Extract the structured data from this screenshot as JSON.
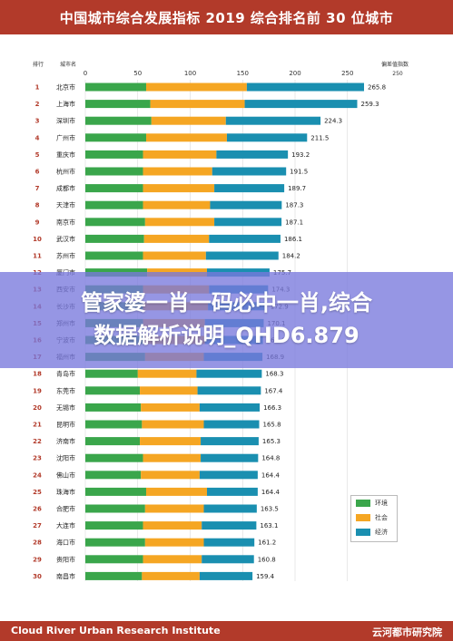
{
  "header": {
    "title": "中国城市综合发展指标 2019 综合排名前 30 位城市"
  },
  "footer": {
    "left": "Cloud River Urban Research Institute",
    "right": "云河都市研究院"
  },
  "overlay": {
    "line1": "管家婆一肖一码必中一肖,综合",
    "line2": "数据解析说明_QHD6.879"
  },
  "colors": {
    "环境": "#3aa64b",
    "社会": "#f5a623",
    "经济": "#1a8fb0",
    "brand": "#b23a2a"
  },
  "chart_data": {
    "type": "bar",
    "orientation": "horizontal",
    "stacked": true,
    "rank_header": "排行",
    "city_header": "城市名",
    "value_header": "偏差值指数",
    "xlim": [
      0,
      250
    ],
    "xticks": [
      0,
      50,
      100,
      150,
      200,
      250
    ],
    "grid": true,
    "legend_position": "bottom-right",
    "ranks": [
      1,
      2,
      3,
      4,
      5,
      6,
      7,
      8,
      9,
      10,
      11,
      12,
      13,
      14,
      15,
      16,
      17,
      18,
      19,
      20,
      21,
      22,
      23,
      24,
      25,
      26,
      27,
      28,
      29,
      30
    ],
    "categories": [
      "北京市",
      "上海市",
      "深圳市",
      "广州市",
      "重庆市",
      "杭州市",
      "成都市",
      "天津市",
      "南京市",
      "武汉市",
      "苏州市",
      "厦门市",
      "西安市",
      "长沙市",
      "郑州市",
      "宁波市",
      "福州市",
      "青岛市",
      "东莞市",
      "无锡市",
      "昆明市",
      "济南市",
      "沈阳市",
      "佛山市",
      "珠海市",
      "合肥市",
      "大连市",
      "海口市",
      "贵阳市",
      "南昌市"
    ],
    "totals": [
      265.8,
      259.3,
      224.3,
      211.5,
      193.2,
      191.5,
      189.7,
      187.3,
      187.1,
      186.1,
      184.2,
      175.7,
      174.3,
      172.9,
      170.1,
      169.4,
      168.9,
      168.3,
      167.4,
      166.3,
      165.8,
      165.3,
      164.8,
      164.4,
      164.4,
      163.5,
      163.1,
      161.2,
      160.8,
      159.4
    ],
    "series": [
      {
        "name": "环境",
        "values": [
          58,
          62,
          63,
          58,
          55,
          55,
          55,
          55,
          57,
          56,
          55,
          59,
          55,
          55,
          55,
          56,
          57,
          50,
          52,
          53,
          54,
          52,
          55,
          53,
          58,
          57,
          55,
          57,
          55,
          54
        ]
      },
      {
        "name": "社会",
        "values": [
          96,
          90,
          71,
          77,
          70,
          66,
          68,
          64,
          66,
          62,
          60,
          57,
          63,
          62,
          59,
          58,
          56,
          56,
          55,
          56,
          59,
          58,
          55,
          56,
          58,
          56,
          56,
          56,
          56,
          55
        ]
      },
      {
        "name": "经济",
        "values": [
          111.8,
          107.3,
          90.3,
          76.5,
          68.2,
          70.5,
          66.7,
          68.3,
          64.1,
          68.1,
          69.2,
          59.7,
          56.3,
          55.9,
          56.1,
          55.4,
          55.9,
          62.3,
          60.4,
          57.3,
          52.8,
          55.3,
          54.8,
          55.4,
          48.4,
          50.5,
          52.1,
          48.2,
          49.8,
          50.4
        ]
      }
    ]
  }
}
